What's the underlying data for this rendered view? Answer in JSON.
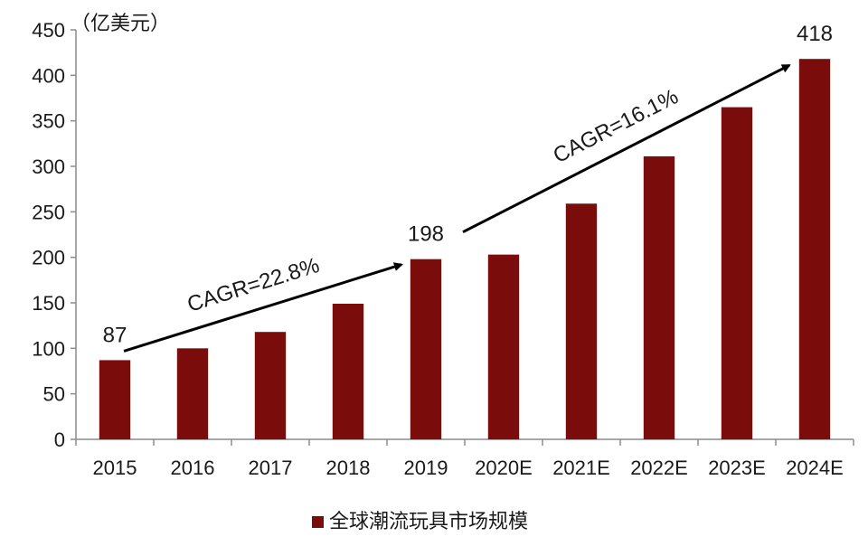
{
  "chart_data": {
    "type": "bar",
    "title": "",
    "unit_label": "（亿美元）",
    "xlabel": "",
    "ylabel": "",
    "ylim": [
      0,
      450
    ],
    "yticks": [
      0,
      50,
      100,
      150,
      200,
      250,
      300,
      350,
      400,
      450
    ],
    "categories": [
      "2015",
      "2016",
      "2017",
      "2018",
      "2019",
      "2020E",
      "2021E",
      "2022E",
      "2023E",
      "2024E"
    ],
    "series": [
      {
        "name": "全球潮流玩具市场规模",
        "values": [
          87,
          100,
          118,
          149,
          198,
          203,
          259,
          311,
          365,
          418
        ]
      }
    ],
    "data_labels": [
      {
        "category": "2015",
        "text": "87"
      },
      {
        "category": "2019",
        "text": "198"
      },
      {
        "category": "2024E",
        "text": "418"
      }
    ],
    "annotations": [
      {
        "text": "CAGR=22.8%",
        "from": "2015",
        "to": "2019"
      },
      {
        "text": "CAGR=16.1%",
        "from": "2019",
        "to": "2024E"
      }
    ],
    "grid": false,
    "legend_position": "bottom-center",
    "colors": {
      "bar": "#7b0c0c",
      "axis": "#8c8c8c",
      "text": "#1a1a1a",
      "arrow": "#000000"
    }
  }
}
